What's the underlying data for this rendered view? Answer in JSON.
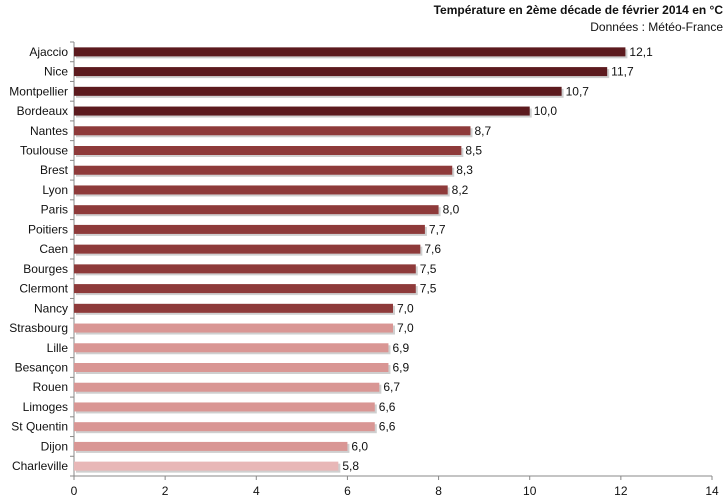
{
  "chart_data": {
    "type": "bar",
    "orientation": "horizontal",
    "title": "Température en 2ème décade de février 2014 en °C",
    "subtitle": "Données : Météo-France",
    "categories": [
      "Ajaccio",
      "Nice",
      "Montpellier",
      "Bordeaux",
      "Nantes",
      "Toulouse",
      "Brest",
      "Lyon",
      "Paris",
      "Poitiers",
      "Caen",
      "Bourges",
      "Clermont",
      "Nancy",
      "Strasbourg",
      "Lille",
      "Besançon",
      "Rouen",
      "Limoges",
      "St Quentin",
      "Dijon",
      "Charleville"
    ],
    "values": [
      12.1,
      11.7,
      10.7,
      10.0,
      8.7,
      8.5,
      8.3,
      8.2,
      8.0,
      7.7,
      7.6,
      7.5,
      7.5,
      7.0,
      7.0,
      6.9,
      6.9,
      6.7,
      6.6,
      6.6,
      6.0,
      5.8
    ],
    "value_labels": [
      "12,1",
      "11,7",
      "10,7",
      "10,0",
      "8,7",
      "8,5",
      "8,3",
      "8,2",
      "8,0",
      "7,7",
      "7,6",
      "7,5",
      "7,5",
      "7,0",
      "7,0",
      "6,9",
      "6,9",
      "6,7",
      "6,6",
      "6,6",
      "6,0",
      "5,8"
    ],
    "bar_colors": [
      "#5c1a1e",
      "#5c1a1e",
      "#5c1a1e",
      "#5c1a1e",
      "#8e3a3a",
      "#8e3a3a",
      "#8e3a3a",
      "#8e3a3a",
      "#8e3a3a",
      "#8e3a3a",
      "#8e3a3a",
      "#8e3a3a",
      "#8e3a3a",
      "#8e3a3a",
      "#d99694",
      "#d99694",
      "#d99694",
      "#d99694",
      "#d99694",
      "#d99694",
      "#d99694",
      "#e8b7b7"
    ],
    "xlim": [
      0,
      14
    ],
    "xticks": [
      "0",
      "2",
      "4",
      "6",
      "8",
      "10",
      "12",
      "14"
    ],
    "grid": false,
    "legend": "none"
  }
}
